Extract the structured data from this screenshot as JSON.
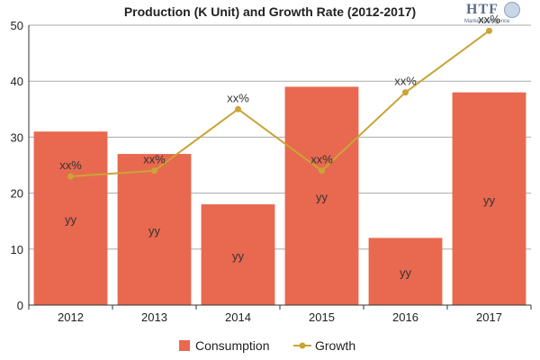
{
  "title": "Production (K Unit) and Growth Rate (2012-2017)",
  "logo": {
    "main": "HTF",
    "sub": "Market Intelligence"
  },
  "colors": {
    "bar": "#e8694f",
    "line": "#c9a437",
    "grid": "#aaaaaa",
    "axis": "#333333"
  },
  "chart_data": {
    "type": "bar",
    "categories": [
      "2012",
      "2013",
      "2014",
      "2015",
      "2016",
      "2017"
    ],
    "ylim": [
      0,
      50
    ],
    "yticks": [
      0,
      10,
      20,
      30,
      40,
      50
    ],
    "grid": true,
    "legend_position": "bottom",
    "series": [
      {
        "name": "Consumption",
        "type": "bar",
        "values": [
          31,
          27,
          18,
          39,
          12,
          38
        ],
        "labels": [
          "yy",
          "yy",
          "yy",
          "yy",
          "yy",
          "yy"
        ]
      },
      {
        "name": "Growth",
        "type": "line",
        "values": [
          23,
          24,
          35,
          24,
          38,
          49
        ],
        "labels": [
          "xx%",
          "xx%",
          "xx%",
          "xx%",
          "xx%",
          "xx%"
        ]
      }
    ]
  }
}
